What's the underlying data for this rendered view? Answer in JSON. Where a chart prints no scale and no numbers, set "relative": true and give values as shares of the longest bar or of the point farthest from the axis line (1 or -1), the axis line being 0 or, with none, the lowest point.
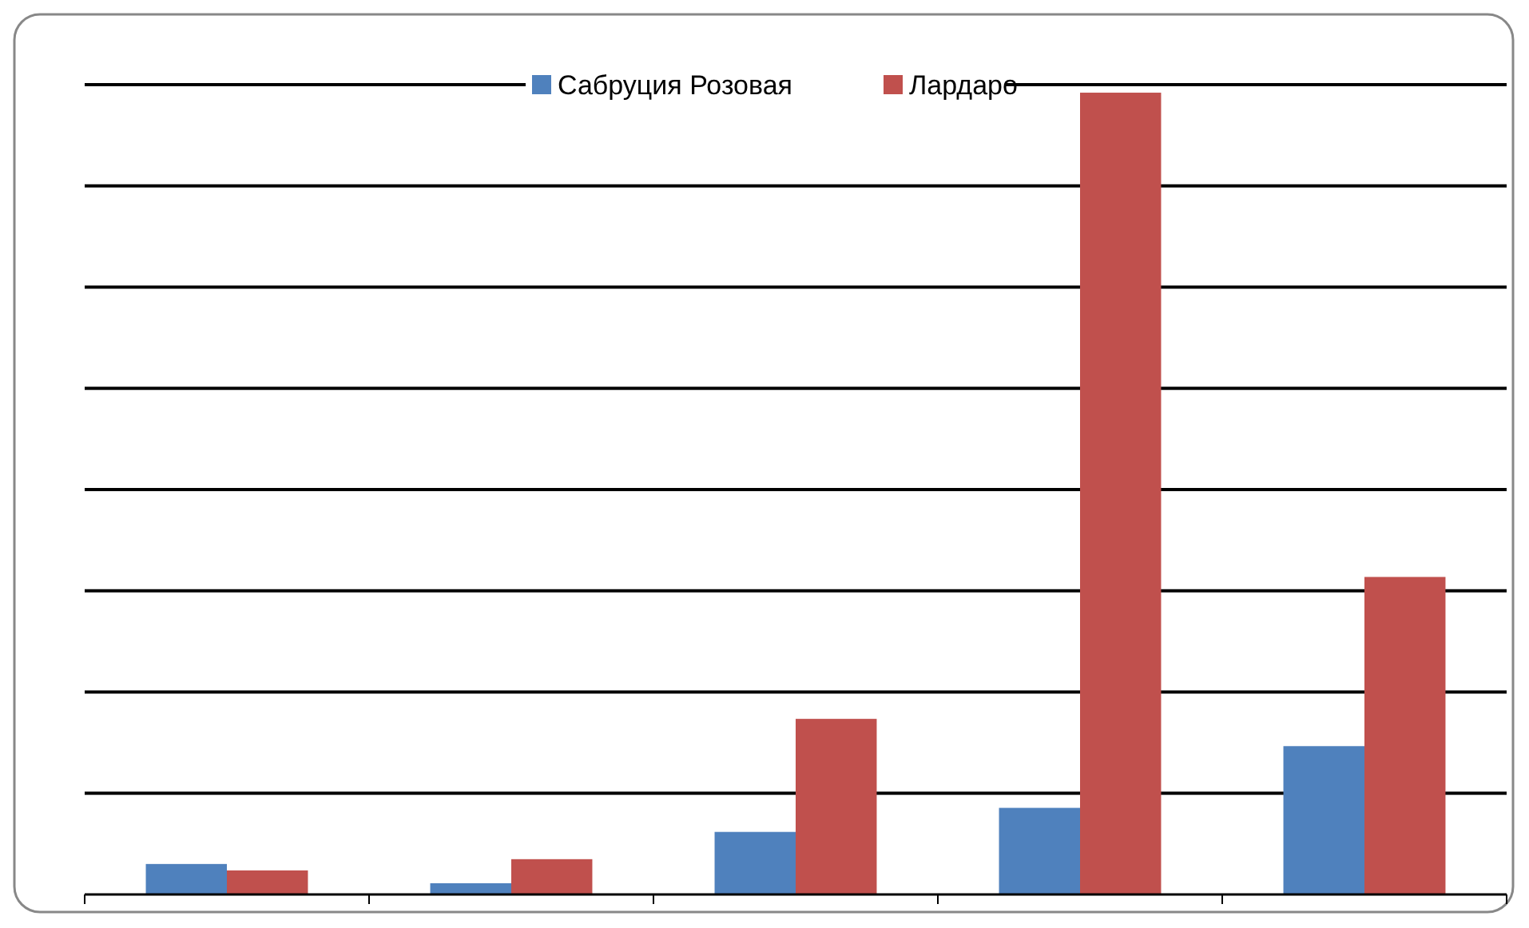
{
  "chart_data": {
    "type": "bar",
    "relative": true,
    "categories": [
      null,
      null,
      null,
      null,
      null
    ],
    "series": [
      {
        "name": "Сабруция Розовая",
        "color": "#4f81bd",
        "values": [
          0.038,
          0.014,
          0.078,
          0.108,
          0.185
        ]
      },
      {
        "name": "Лардаро",
        "color": "#c0504d",
        "values": [
          0.03,
          0.044,
          0.219,
          1,
          0.396
        ]
      }
    ],
    "grid": true,
    "legend": "top"
  }
}
